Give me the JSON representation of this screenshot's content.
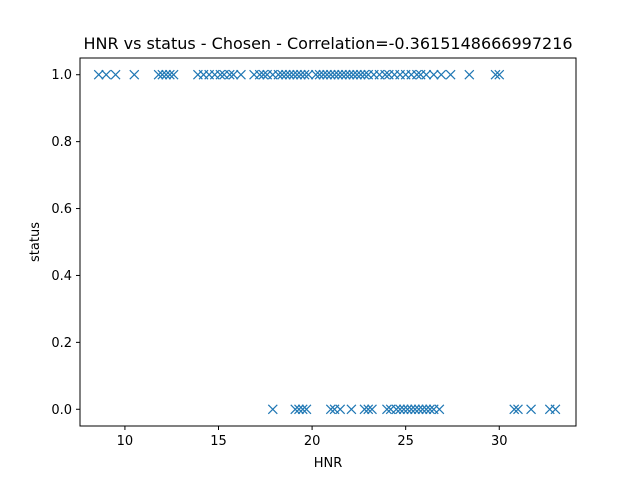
{
  "chart_data": {
    "type": "scatter",
    "title": "HNR vs status - Chosen - Correlation=-0.3615148666997216",
    "xlabel": "HNR",
    "ylabel": "status",
    "xlim": [
      7.6,
      34.1
    ],
    "ylim": [
      -0.05,
      1.05
    ],
    "xticks": [
      10,
      15,
      20,
      25,
      30
    ],
    "yticks": [
      0.0,
      0.2,
      0.4,
      0.6,
      0.8,
      1.0
    ],
    "xtick_labels": [
      "10",
      "15",
      "20",
      "25",
      "30"
    ],
    "ytick_labels": [
      "0.0",
      "0.2",
      "0.4",
      "0.6",
      "0.8",
      "1.0"
    ],
    "grid": false,
    "marker": "x",
    "marker_color": "#1f77b4",
    "series": [
      {
        "values": [
          [
            8.6,
            1
          ],
          [
            9.0,
            1
          ],
          [
            9.5,
            1
          ],
          [
            10.5,
            1
          ],
          [
            11.8,
            1
          ],
          [
            12.0,
            1
          ],
          [
            12.2,
            1
          ],
          [
            12.4,
            1
          ],
          [
            12.6,
            1
          ],
          [
            13.9,
            1
          ],
          [
            14.2,
            1
          ],
          [
            14.5,
            1
          ],
          [
            14.8,
            1
          ],
          [
            15.1,
            1
          ],
          [
            15.3,
            1
          ],
          [
            15.6,
            1
          ],
          [
            15.8,
            1
          ],
          [
            16.2,
            1
          ],
          [
            16.9,
            1
          ],
          [
            17.2,
            1
          ],
          [
            17.4,
            1
          ],
          [
            17.6,
            1
          ],
          [
            17.9,
            1
          ],
          [
            18.2,
            1
          ],
          [
            18.4,
            1
          ],
          [
            18.6,
            1
          ],
          [
            18.8,
            1
          ],
          [
            19.0,
            1
          ],
          [
            19.2,
            1
          ],
          [
            19.4,
            1
          ],
          [
            19.6,
            1
          ],
          [
            19.8,
            1
          ],
          [
            20.2,
            1
          ],
          [
            20.4,
            1
          ],
          [
            20.6,
            1
          ],
          [
            20.8,
            1
          ],
          [
            21.0,
            1
          ],
          [
            21.2,
            1
          ],
          [
            21.4,
            1
          ],
          [
            21.6,
            1
          ],
          [
            21.8,
            1
          ],
          [
            22.0,
            1
          ],
          [
            22.2,
            1
          ],
          [
            22.4,
            1
          ],
          [
            22.6,
            1
          ],
          [
            22.8,
            1
          ],
          [
            23.0,
            1
          ],
          [
            23.3,
            1
          ],
          [
            23.6,
            1
          ],
          [
            23.9,
            1
          ],
          [
            24.1,
            1
          ],
          [
            24.4,
            1
          ],
          [
            24.7,
            1
          ],
          [
            25.0,
            1
          ],
          [
            25.3,
            1
          ],
          [
            25.6,
            1
          ],
          [
            25.8,
            1
          ],
          [
            26.1,
            1
          ],
          [
            26.5,
            1
          ],
          [
            26.9,
            1
          ],
          [
            27.4,
            1
          ],
          [
            28.4,
            1
          ],
          [
            29.8,
            1
          ],
          [
            30.0,
            1
          ],
          [
            17.9,
            0
          ],
          [
            19.1,
            0
          ],
          [
            19.3,
            0
          ],
          [
            19.5,
            0
          ],
          [
            19.7,
            0
          ],
          [
            21.0,
            0
          ],
          [
            21.2,
            0
          ],
          [
            21.5,
            0
          ],
          [
            22.1,
            0
          ],
          [
            22.8,
            0
          ],
          [
            23.0,
            0
          ],
          [
            23.2,
            0
          ],
          [
            24.0,
            0
          ],
          [
            24.2,
            0
          ],
          [
            24.5,
            0
          ],
          [
            24.7,
            0
          ],
          [
            24.9,
            0
          ],
          [
            25.1,
            0
          ],
          [
            25.3,
            0
          ],
          [
            25.5,
            0
          ],
          [
            25.7,
            0
          ],
          [
            25.9,
            0
          ],
          [
            26.1,
            0
          ],
          [
            26.3,
            0
          ],
          [
            26.5,
            0
          ],
          [
            26.8,
            0
          ],
          [
            30.8,
            0
          ],
          [
            31.0,
            0
          ],
          [
            31.7,
            0
          ],
          [
            32.7,
            0
          ],
          [
            33.0,
            0
          ]
        ]
      }
    ]
  }
}
